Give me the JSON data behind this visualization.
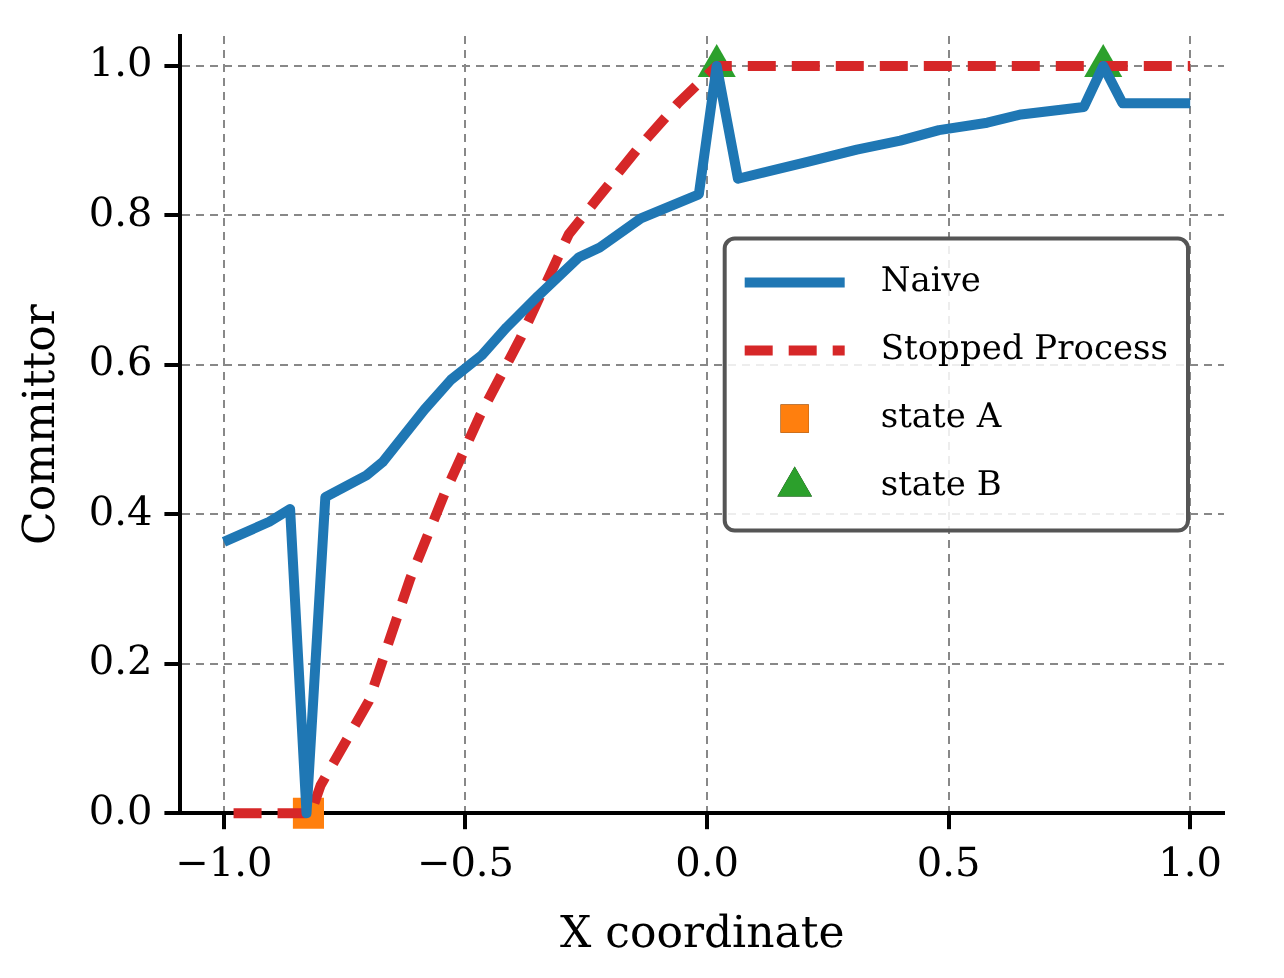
{
  "chart_data": {
    "type": "line",
    "xlabel": "X coordinate",
    "ylabel": "Committor",
    "xlim": [
      -1.09,
      1.07
    ],
    "ylim": [
      0,
      1.04
    ],
    "xticks": [
      {
        "value": -1,
        "label": "−1.0"
      },
      {
        "value": -0.5,
        "label": "−0.5"
      },
      {
        "value": 0,
        "label": "0.0"
      },
      {
        "value": 0.5,
        "label": "0.5"
      },
      {
        "value": 1,
        "label": "1.0"
      }
    ],
    "yticks": [
      {
        "value": 0,
        "label": "0.0"
      },
      {
        "value": 0.2,
        "label": "0.2"
      },
      {
        "value": 0.4,
        "label": "0.4"
      },
      {
        "value": 0.6,
        "label": "0.6"
      },
      {
        "value": 0.8,
        "label": "0.8"
      },
      {
        "value": 1,
        "label": "1.0"
      }
    ],
    "grid": true,
    "legend": "right",
    "series": [
      {
        "name": "Naive",
        "color": "#1f77b4",
        "line_style": "solid",
        "marker": "none",
        "x": [
          -1.0,
          -0.906,
          -0.863,
          -0.829,
          -0.79,
          -0.705,
          -0.671,
          -0.585,
          -0.53,
          -0.466,
          -0.415,
          -0.35,
          -0.265,
          -0.222,
          -0.137,
          -0.017,
          0.02,
          0.064,
          0.21,
          0.31,
          0.4,
          0.48,
          0.58,
          0.65,
          0.78,
          0.82,
          0.86,
          1.0
        ],
        "values": [
          0.363,
          0.39,
          0.407,
          0.0,
          0.423,
          0.452,
          0.47,
          0.54,
          0.58,
          0.613,
          0.65,
          0.692,
          0.744,
          0.757,
          0.796,
          0.828,
          1.0,
          0.849,
          0.872,
          0.888,
          0.9,
          0.914,
          0.924,
          0.935,
          0.945,
          1.0,
          0.95,
          0.95
        ]
      },
      {
        "name": "Stopped Process",
        "color": "#d62728",
        "line_style": "dashed",
        "marker": "none",
        "x": [
          -0.98,
          -0.82,
          -0.8,
          -0.7,
          -0.615,
          -0.543,
          -0.47,
          -0.385,
          -0.286,
          -0.23,
          -0.145,
          -0.06,
          0.02,
          1.0
        ],
        "values": [
          0.0,
          0.0,
          0.037,
          0.15,
          0.313,
          0.428,
          0.532,
          0.637,
          0.775,
          0.82,
          0.888,
          0.95,
          1.0,
          1.0
        ]
      },
      {
        "name": "state A",
        "type": "scatter",
        "color": "#ff7f0e",
        "marker": "square",
        "x": [
          -0.825
        ],
        "values": [
          0.0
        ]
      },
      {
        "name": "state B",
        "type": "scatter",
        "color": "#2ca02c",
        "marker": "triangle",
        "x": [
          0.02,
          0.82
        ],
        "values": [
          1.0,
          1.0
        ]
      }
    ]
  }
}
